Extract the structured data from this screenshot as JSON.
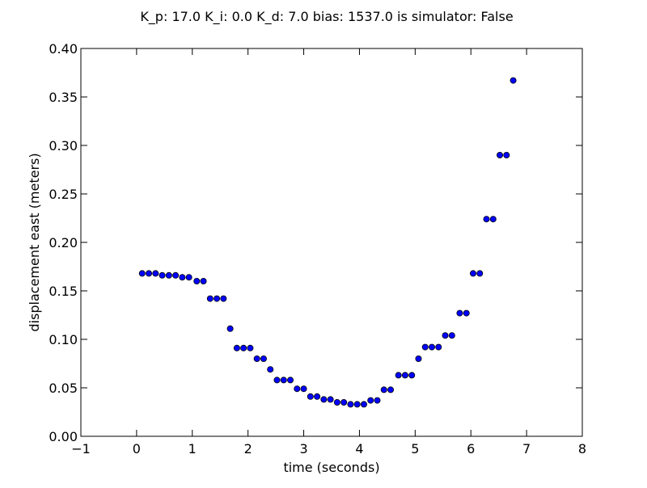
{
  "chart_data": {
    "type": "scatter",
    "title": "K_p: 17.0 K_i: 0.0 K_d: 7.0 bias: 1537.0 is simulator: False",
    "xlabel": "time (seconds)",
    "ylabel": "displacement east (meters)",
    "xlim": [
      -1,
      8
    ],
    "ylim": [
      0.0,
      0.4
    ],
    "xticks": [
      "−1",
      "0",
      "1",
      "2",
      "3",
      "4",
      "5",
      "6",
      "7",
      "8"
    ],
    "yticks": [
      "0.00",
      "0.05",
      "0.10",
      "0.15",
      "0.20",
      "0.25",
      "0.30",
      "0.35",
      "0.40"
    ],
    "grid": false,
    "marker_color": "#0000ff",
    "series": [
      {
        "x": [
          0.1,
          0.22,
          0.34,
          0.46,
          0.58,
          0.7,
          0.82,
          0.94,
          1.08,
          1.2,
          1.32,
          1.44,
          1.56,
          1.68,
          1.8,
          1.92,
          2.04,
          2.16,
          2.28,
          2.4,
          2.52,
          2.64,
          2.76,
          2.88,
          3.0,
          3.12,
          3.24,
          3.36,
          3.48,
          3.6,
          3.72,
          3.84,
          3.96,
          4.08,
          4.2,
          4.32,
          4.44,
          4.56,
          4.7,
          4.82,
          4.94,
          5.06,
          5.18,
          5.3,
          5.42,
          5.54,
          5.66,
          5.8,
          5.92,
          6.04,
          6.16,
          6.28,
          6.4,
          6.52,
          6.64,
          6.76
        ],
        "y": [
          0.168,
          0.168,
          0.168,
          0.166,
          0.166,
          0.166,
          0.164,
          0.164,
          0.16,
          0.16,
          0.142,
          0.142,
          0.142,
          0.111,
          0.091,
          0.091,
          0.091,
          0.08,
          0.08,
          0.069,
          0.058,
          0.058,
          0.058,
          0.049,
          0.049,
          0.041,
          0.041,
          0.038,
          0.038,
          0.035,
          0.035,
          0.033,
          0.033,
          0.033,
          0.037,
          0.037,
          0.048,
          0.048,
          0.063,
          0.063,
          0.063,
          0.08,
          0.092,
          0.092,
          0.092,
          0.104,
          0.104,
          0.127,
          0.127,
          0.168,
          0.168,
          0.224,
          0.224,
          0.29,
          0.29,
          0.367
        ]
      }
    ]
  }
}
